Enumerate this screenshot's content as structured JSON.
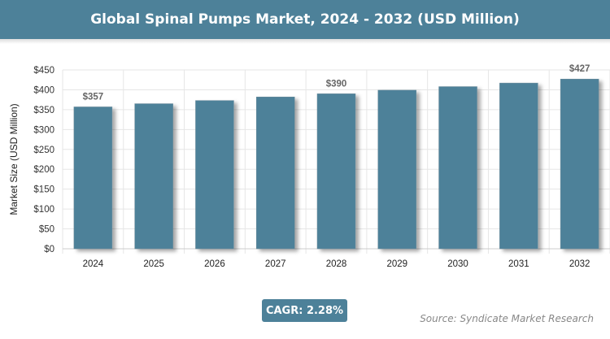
{
  "chart_data": {
    "type": "bar",
    "title": "Global Spinal Pumps Market, 2024 - 2032 (USD Million)",
    "categories": [
      "2024",
      "2025",
      "2026",
      "2027",
      "2028",
      "2029",
      "2030",
      "2031",
      "2032"
    ],
    "values": [
      357,
      365,
      373,
      382,
      390,
      399,
      408,
      417,
      427
    ],
    "data_labels": {
      "0": "$357",
      "4": "$390",
      "8": "$427"
    },
    "ylabel": "Market Size (USD Million)",
    "xlabel": "",
    "ylim": [
      0,
      450
    ],
    "yticks": [
      "$0",
      "$50",
      "$100",
      "$150",
      "$200",
      "$250",
      "$300",
      "$350",
      "$400",
      "$450"
    ],
    "grid": true,
    "bar_color": "#4d8199"
  },
  "cagr_label": "CAGR: 2.28%",
  "source": "Source: Syndicate Market Research"
}
